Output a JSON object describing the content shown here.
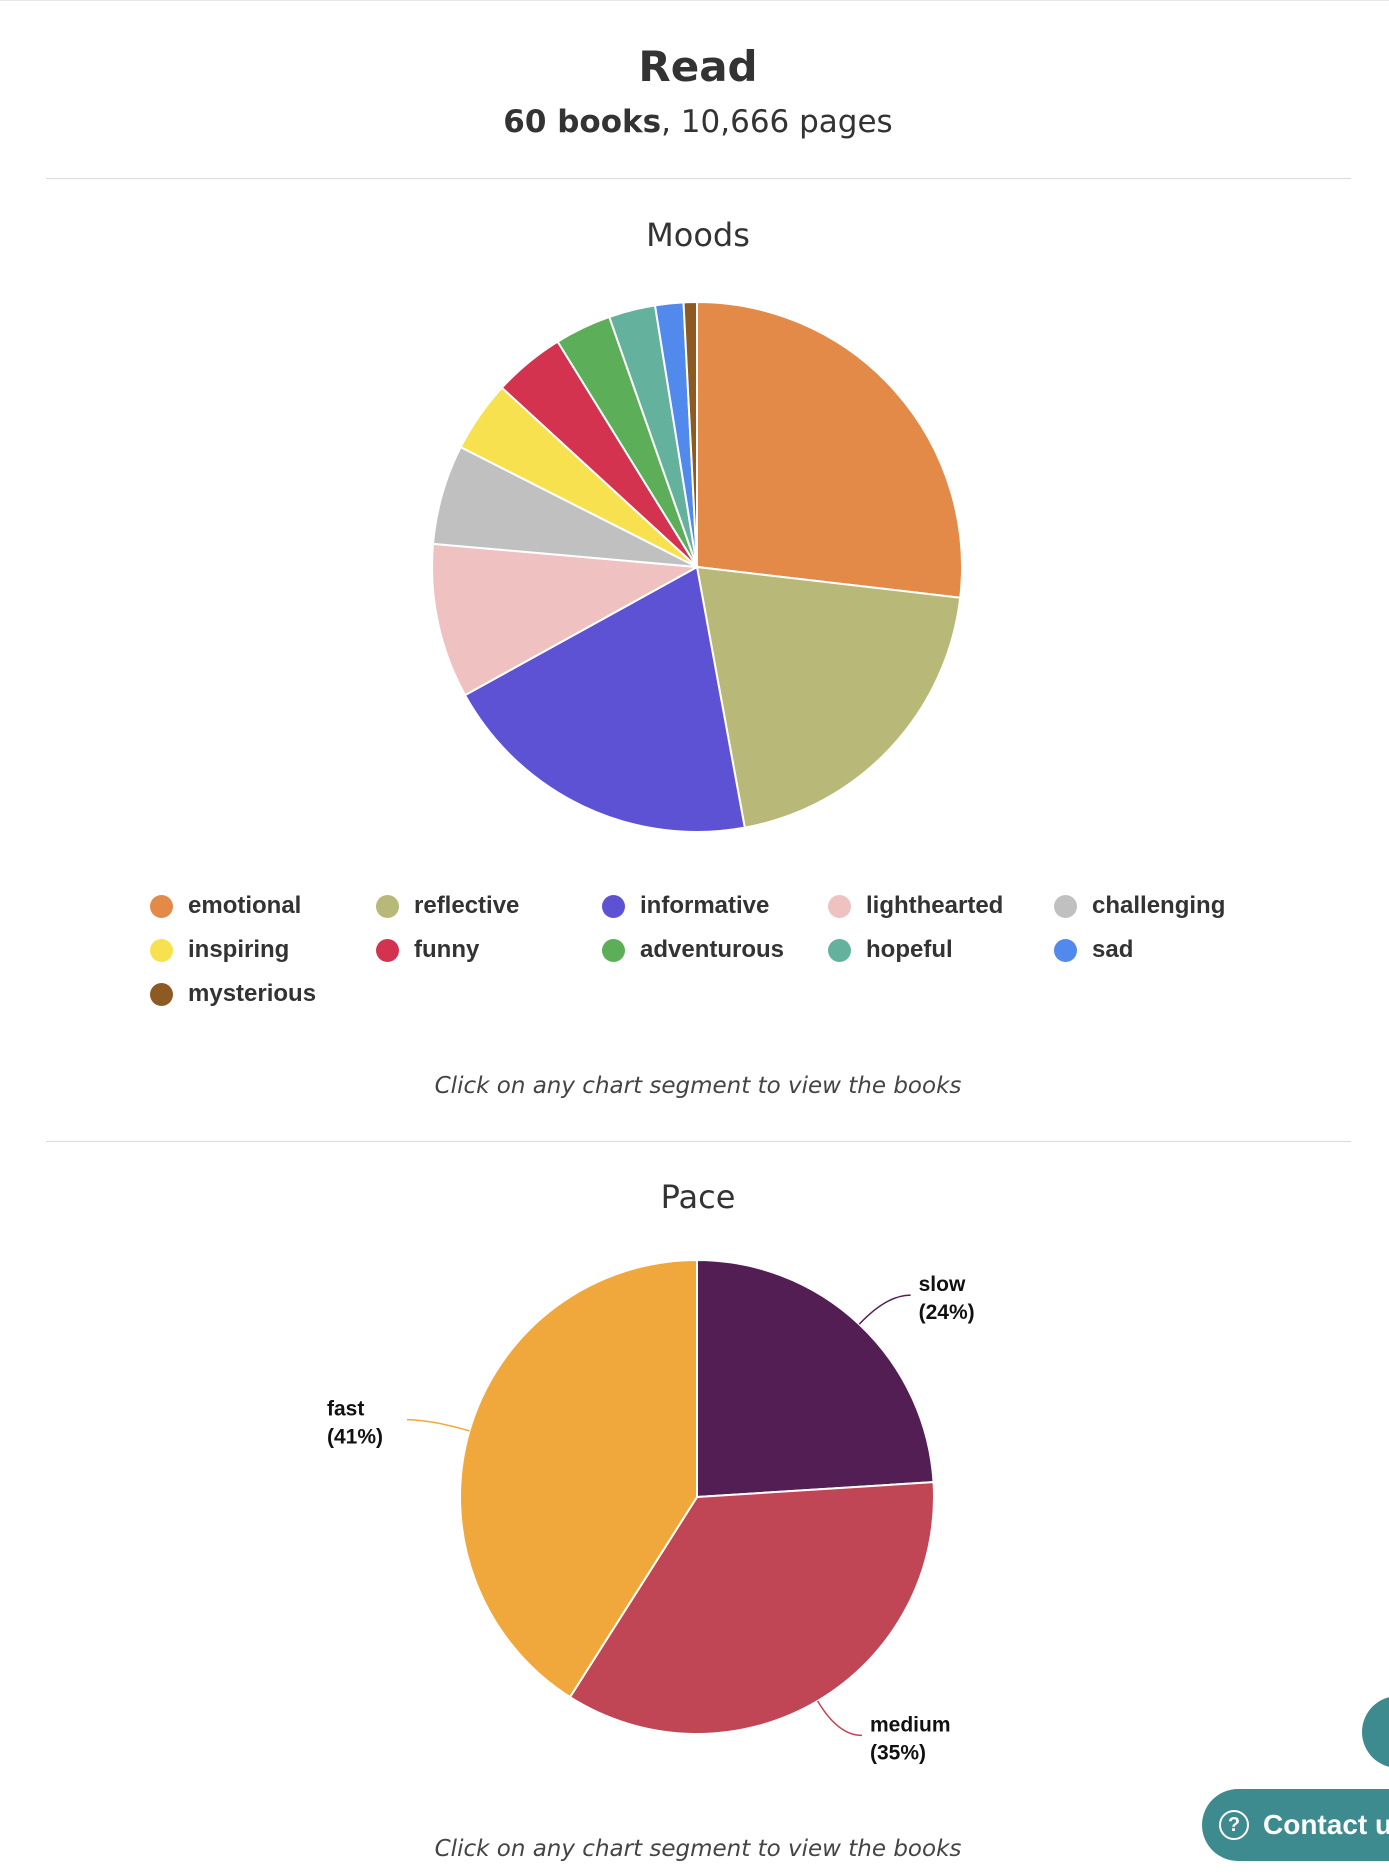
{
  "header": {
    "title": "Read",
    "books_count": "60 books",
    "pages_count": ", 10,666 pages"
  },
  "contact": {
    "label": "Contact us",
    "icon": "question-circle-icon"
  },
  "chart_data": [
    {
      "type": "pie",
      "title": "Moods",
      "categories": [
        "emotional",
        "reflective",
        "informative",
        "lighthearted",
        "challenging",
        "inspiring",
        "funny",
        "adventurous",
        "hopeful",
        "sad",
        "mysterious"
      ],
      "values": [
        26.5,
        20.0,
        19.6,
        9.3,
        6.0,
        4.3,
        4.3,
        3.4,
        2.8,
        1.7,
        0.8
      ],
      "colors": [
        "#e38a48",
        "#b8b878",
        "#5e52d4",
        "#efc1c1",
        "#c0c0c0",
        "#f8e14e",
        "#d4334f",
        "#5caf58",
        "#64b29d",
        "#5289ed",
        "#8c5a22"
      ],
      "legend": "bottom",
      "hint": "Click on any chart segment to view the books"
    },
    {
      "type": "pie",
      "title": "Pace",
      "categories": [
        "slow",
        "medium",
        "fast"
      ],
      "values": [
        24,
        35,
        41
      ],
      "percent_labels": [
        "(24%)",
        "(35%)",
        "(41%)"
      ],
      "colors": [
        "#521e54",
        "#c04656",
        "#f0a83c"
      ],
      "hint": "Click on any chart segment to view the books"
    }
  ]
}
